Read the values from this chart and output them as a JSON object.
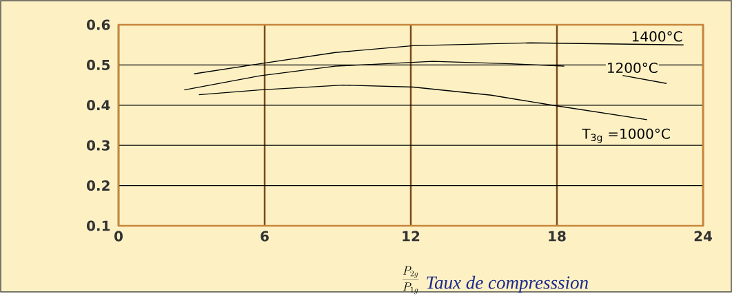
{
  "chart_data": {
    "type": "line",
    "xlabel": "Taux de compresssion",
    "annotations": [
      "\\frac{P_{2g}}{P_{1g}}"
    ],
    "xlim": [
      0,
      24
    ],
    "ylim": [
      0.1,
      0.6
    ],
    "xticks": [
      0,
      6,
      12,
      18,
      24
    ],
    "yticks": [
      0.1,
      0.2,
      0.3,
      0.4,
      0.5,
      0.6
    ],
    "grid": true,
    "marker": "none",
    "line_style": "solid",
    "series": [
      {
        "name": "1400°C",
        "color": "#000000",
        "x": [
          3.1,
          5.8,
          8.9,
          12.1,
          16.9,
          23.2
        ],
        "values": [
          0.478,
          0.503,
          0.531,
          0.548,
          0.555,
          0.55
        ]
      },
      {
        "name": "1200°C",
        "color": "#000000",
        "x": [
          2.7,
          5.8,
          8.9,
          12.9,
          16.1,
          18.3,
          19.5,
          20.7,
          22.5
        ],
        "values": [
          0.438,
          0.473,
          0.497,
          0.509,
          0.503,
          0.497,
          null,
          0.474,
          0.454
        ]
      },
      {
        "name": "T$_{3g}$ =1000°C",
        "color": "#000000",
        "x": [
          3.3,
          5.8,
          9.2,
          12.1,
          15.3,
          17.8,
          21.7
        ],
        "values": [
          0.426,
          0.438,
          0.45,
          0.445,
          0.425,
          0.4,
          0.364
        ]
      }
    ]
  }
}
